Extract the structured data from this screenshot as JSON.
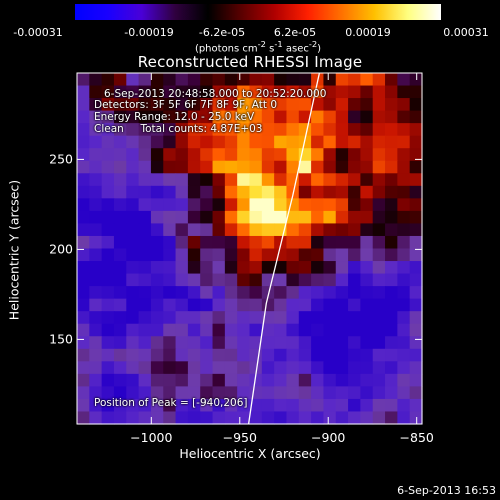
{
  "colorbar": {
    "ticks": [
      "-0.00031",
      "-0.00019",
      "-6.2e-05",
      "6.2e-05",
      "0.00019",
      "0.00031"
    ],
    "units_main": "(photons cm",
    "units_sup1": "-2",
    "units_mid": " s",
    "units_sup2": "-1",
    "units_end": " asec",
    "units_sup3": "-2",
    "units_close": ")",
    "gradient": [
      "#0000ff",
      "#1a00ff",
      "#4a00d8",
      "#300040",
      "#000000",
      "#5a0000",
      "#b00000",
      "#ff2000",
      "#ff7000",
      "#ffc000",
      "#ffff80",
      "#ffffff"
    ]
  },
  "title": "Reconstructed RHESSI Image",
  "info": {
    "line1": "6-Sep-2013 20:48:58.000 to 20:52:20.000",
    "line2": "Detectors: 3F 5F 6F 7F 8F 9F, Att 0",
    "line3": "Energy Range: 12.0 - 25.0 keV",
    "line4": "Clean     Total counts: 4.87E+03",
    "peak": "Position of Peak = [-940,206]"
  },
  "timestamp": "6-Sep-2013 16:53",
  "chart_data": {
    "type": "heatmap",
    "title": "Reconstructed RHESSI Image",
    "xlabel": "Heliocentric X (arcsec)",
    "ylabel": "Heliocentric Y (arcsec)",
    "xlim": [
      -1042,
      -847
    ],
    "ylim": [
      103,
      298
    ],
    "xticks": [
      -1000,
      -950,
      -900,
      -850
    ],
    "yticks": [
      150,
      200,
      250
    ],
    "xtick_labels": [
      "−1000",
      "−950",
      "−900",
      "−850"
    ],
    "ytick_labels": [
      "150",
      "200",
      "250"
    ],
    "colorbar_range": [
      -0.00031,
      0.00031
    ],
    "peak_position": [
      -940,
      206
    ],
    "limb_line": {
      "x": [
        -945,
        -935,
        -920,
        -905
      ],
      "y": [
        103,
        170,
        230,
        298
      ]
    },
    "grid_size": [
      28,
      28
    ]
  }
}
